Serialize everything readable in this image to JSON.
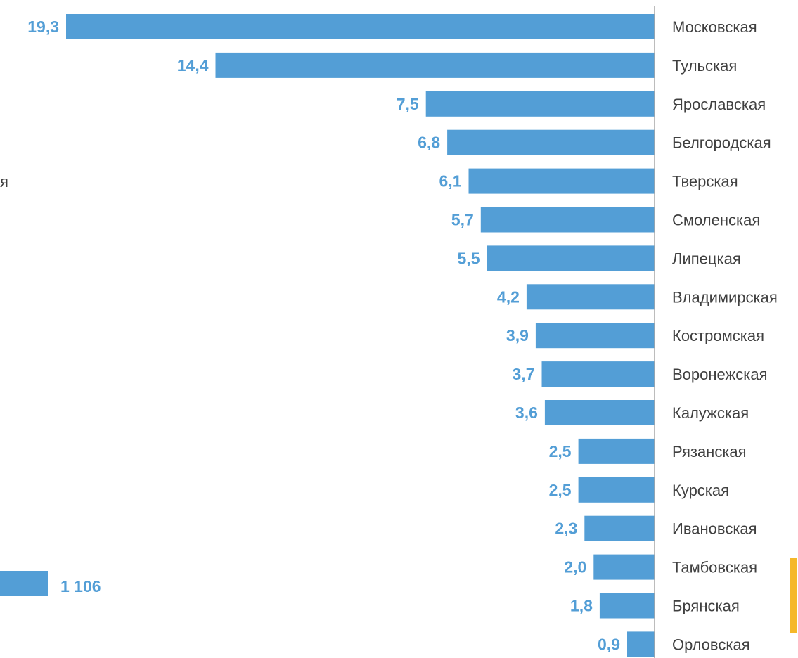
{
  "chart_data": {
    "type": "bar",
    "orientation": "horizontal",
    "categories": [
      "Московская",
      "Тульская",
      "Ярославская",
      "Белгородская",
      "Тверская",
      "Смоленская",
      "Липецкая",
      "Владимирская",
      "Костромская",
      "Воронежская",
      "Калужская",
      "Рязанская",
      "Курская",
      "Ивановская",
      "Тамбовская",
      "Брянская",
      "Орловская"
    ],
    "values": [
      19.3,
      14.4,
      7.5,
      6.8,
      6.1,
      5.7,
      5.5,
      4.2,
      3.9,
      3.7,
      3.6,
      2.5,
      2.5,
      2.3,
      2.0,
      1.8,
      0.9
    ],
    "value_labels": [
      "19,3",
      "14,4",
      "7,5",
      "6,8",
      "6,1",
      "5,7",
      "5,5",
      "4,2",
      "3,9",
      "3,7",
      "3,6",
      "2,5",
      "2,5",
      "2,3",
      "2,0",
      "1,8",
      "0,9"
    ],
    "bar_color": "#539ed6",
    "label_color": "#539ed6",
    "axis_color": "#a6a6a6",
    "highlight_color": "#f5b829"
  },
  "clipped_left_panel": {
    "fragment_text": "я",
    "value_label": "1 106"
  }
}
